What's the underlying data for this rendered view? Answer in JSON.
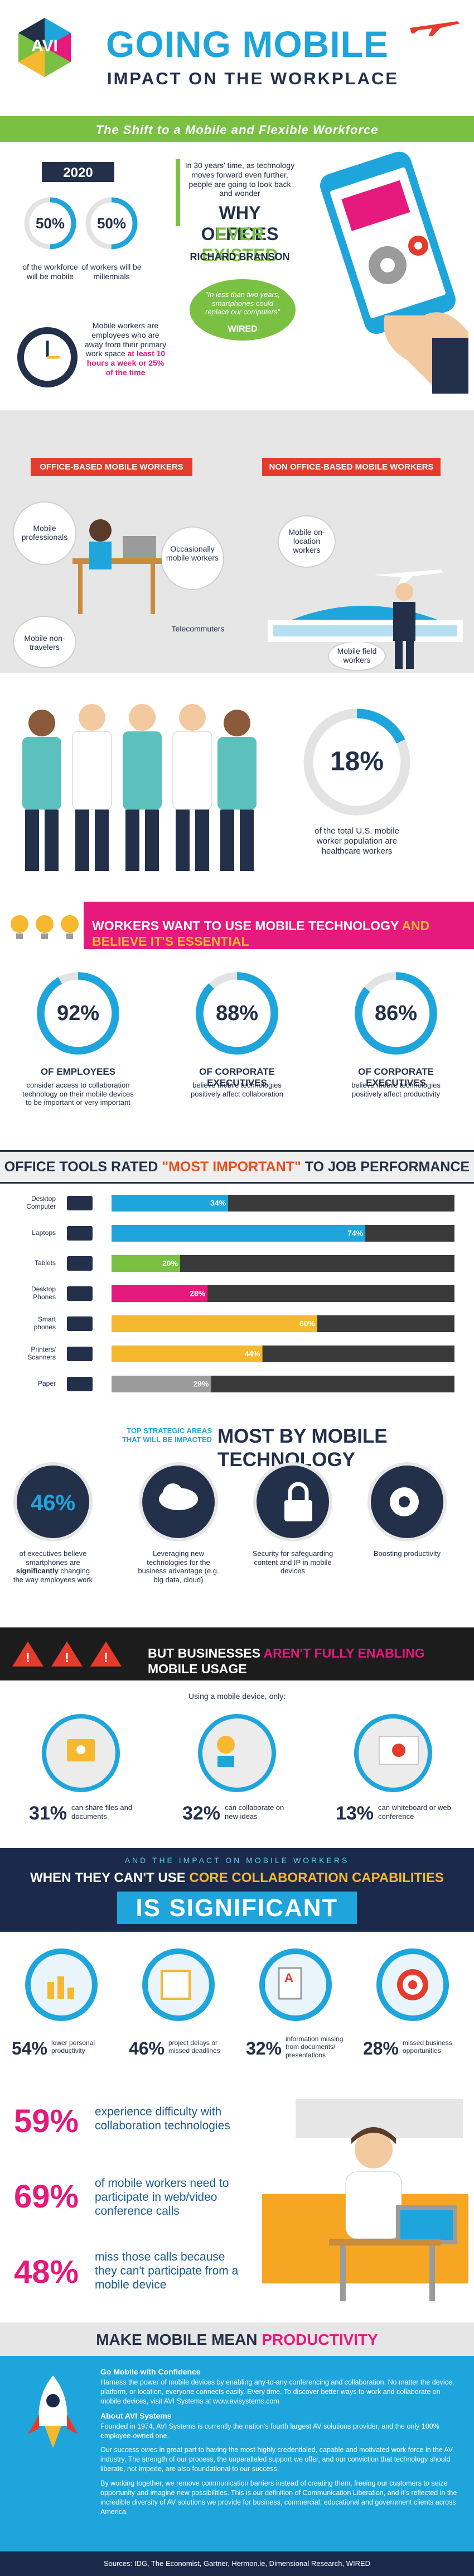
{
  "header": {
    "logo": "AVI",
    "title": "GOING MOBILE",
    "subtitle": "IMPACT ON THE WORKPLACE"
  },
  "shift": {
    "banner": "The Shift to a Mobile and Flexible Workforce",
    "year": "2020",
    "stats": [
      {
        "value": 50,
        "label": "50%",
        "text": "of the workforce will be mobile"
      },
      {
        "value": 50,
        "label": "50%",
        "text": "of workers will be millennials"
      }
    ],
    "definition": {
      "text": "Mobile workers are employees who are away from their primary work space",
      "highlight": "at least 10 hours a week or 25% of the time"
    },
    "quote": {
      "text": "In 30 years' time, as technology moves forward even further, people are going to look back and wonder",
      "line1": "WHY OFFICES",
      "line2": "EVER EXISTED",
      "author": "RICHARD BRANSON"
    },
    "wired": {
      "text": "\"In less than two years, smartphones could replace our computers\"",
      "source": "WIRED"
    }
  },
  "types": {
    "office": {
      "heading": "OFFICE-BASED MOBILE WORKERS",
      "items": [
        "Mobile professionals",
        "Occasionally mobile workers",
        "Mobile non-travelers",
        "Telecommuters"
      ]
    },
    "non_office": {
      "heading": "NON OFFICE-BASED MOBILE WORKERS",
      "items": [
        "Mobile on-location workers",
        "Mobile field workers"
      ]
    }
  },
  "healthcare": {
    "value": 18,
    "label": "18%",
    "text": "of the total U.S. mobile worker population are healthcare workers"
  },
  "want": {
    "banner": {
      "part1": "WORKERS WANT TO USE MOBILE TECHNOLOGY",
      "part2": "AND BELIEVE IT'S ESSENTIAL"
    },
    "stats": [
      {
        "value": 92,
        "label": "92%",
        "who": "OF EMPLOYEES",
        "text": "consider access to collaboration technology on their mobile devices to be important or very important"
      },
      {
        "value": 88,
        "label": "88%",
        "who": "OF CORPORATE EXECUTIVES",
        "text": "believe mobile technologies positively affect collaboration"
      },
      {
        "value": 86,
        "label": "86%",
        "who": "OF CORPORATE EXECUTIVES",
        "text": "believe mobile technologies positively affect productivity"
      }
    ]
  },
  "tools": {
    "heading": {
      "part1": "OFFICE TOOLS RATED",
      "part2": "\"MOST IMPORTANT\"",
      "part3": "TO JOB PERFORMANCE"
    },
    "xlim": [
      0,
      100
    ],
    "items": [
      {
        "name": "Desktop Computer",
        "value": 34,
        "label": "34%",
        "color": "#1ea5dc"
      },
      {
        "name": "Laptops",
        "value": 74,
        "label": "74%",
        "color": "#1ea5dc"
      },
      {
        "name": "Tablets",
        "value": 20,
        "label": "20%",
        "color": "#7ac143"
      },
      {
        "name": "Desktop Phones",
        "value": 28,
        "label": "28%",
        "color": "#e6197c"
      },
      {
        "name": "Smart phones",
        "value": 60,
        "label": "60%",
        "color": "#f5b82e"
      },
      {
        "name": "Printers/ Scanners",
        "value": 44,
        "label": "44%",
        "color": "#f5b82e"
      },
      {
        "name": "Paper",
        "value": 29,
        "label": "29%",
        "color": "#9b9b9b"
      }
    ]
  },
  "areas": {
    "kicker": "TOP STRATEGIC AREAS THAT WILL BE IMPACTED",
    "heading": "MOST BY MOBILE TECHNOLOGY",
    "stat": {
      "label": "46%",
      "before": "of executives believe smartphones are",
      "emphasis": "significantly",
      "after": "changing the way employees work"
    },
    "items": [
      "Leveraging new technologies for the business advantage (e.g. big data, cloud)",
      "Security for safeguarding content and IP in mobile devices",
      "Boosting productivity"
    ]
  },
  "enabling": {
    "banner": {
      "part1": "BUT BUSINESSES",
      "part2": "AREN'T FULLY ENABLING",
      "part3": "MOBILE USAGE"
    },
    "intro": "Using a mobile device, only:",
    "stats": [
      {
        "label": "31%",
        "text": "can share files and documents"
      },
      {
        "label": "32%",
        "text": "can collaborate on new ideas"
      },
      {
        "label": "13%",
        "text": "can whiteboard or web conference"
      }
    ]
  },
  "impact": {
    "kicker": "AND THE IMPACT ON MOBILE WORKERS",
    "heading": {
      "part1": "WHEN THEY CAN'T USE",
      "part2": "CORE COLLABORATION CAPABILITIES"
    },
    "big": "IS SIGNIFICANT",
    "stats": [
      {
        "label": "54%",
        "text": "lower personal productivity"
      },
      {
        "label": "46%",
        "text": "project delays or missed deadlines"
      },
      {
        "label": "32%",
        "text": "information missing from documents/ presentations"
      },
      {
        "label": "28%",
        "text": "missed business opportunities"
      }
    ]
  },
  "calls": [
    {
      "label": "59%",
      "text": "experience difficulty with collaboration technologies"
    },
    {
      "label": "69%",
      "text": "of mobile workers need to participate in web/video conference calls"
    },
    {
      "label": "48%",
      "text": "miss those calls because they can't participate from a mobile device"
    }
  ],
  "closing": {
    "banner": {
      "part1": "MAKE MOBILE MEAN",
      "part2": "PRODUCTIVITY"
    },
    "sections": [
      {
        "heading": "Go Mobile with Confidence",
        "paragraphs": [
          "Harness the power of mobile devices by enabling any-to-any conferencing and collaboration. No matter the device, platform, or location, everyone connects easily. Every time. To discover better ways to work and collaborate on mobile devices, visit AVI Systems at www.avisystems.com"
        ]
      },
      {
        "heading": "About AVI Systems",
        "paragraphs": [
          "Founded in 1974, AVI Systems is currently the nation's fourth largest AV solutions provider, and the only 100% employee-owned one.",
          "Our success owes in great part to having the most highly credentialed, capable and motivated work force in the AV industry. The strength of our process, the unparalleled support we offer, and our conviction that technology should liberate, not impede, are also foundational to our success.",
          "By working together, we remove communication barriers instead of creating them, freeing our customers to seize opportunity and imagine new possibilities. This is our definition of Communication Liberation, and it's reflected in the incredible diversity of AV solutions we provide for business, commercial, educational and government clients across America."
        ]
      }
    ],
    "sources": "Sources: IDG, The Economist, Gartner, Hermon.ie, Dimensional Research, WIRED"
  }
}
